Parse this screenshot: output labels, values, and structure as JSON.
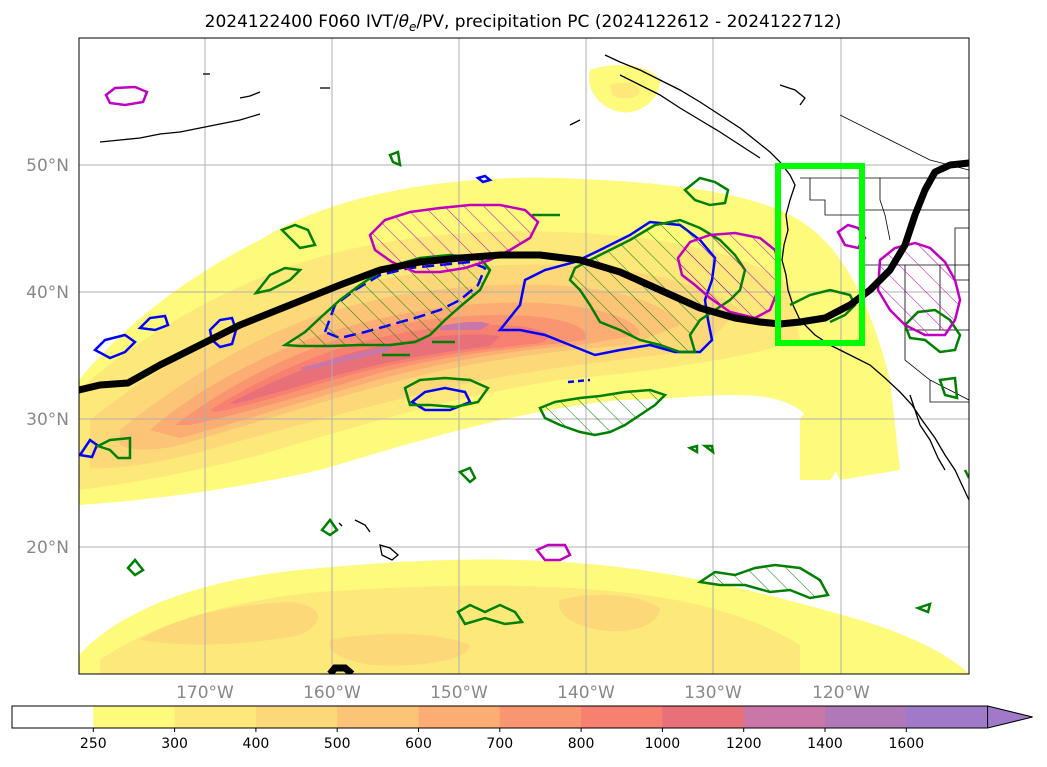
{
  "title": {
    "text_main": "2024122400 F060 IVT/",
    "theta": "θ",
    "theta_sub": "e",
    "text_rest": "/PV, precipitation PC (2024122612 - 2024122712)"
  },
  "axes": {
    "lat_labels": [
      "50°N",
      "40°N",
      "30°N",
      "20°N"
    ],
    "lon_labels": [
      "170°W",
      "160°W",
      "150°W",
      "140°W",
      "130°W",
      "120°W"
    ]
  },
  "colorbar": {
    "ticks": [
      "250",
      "300",
      "400",
      "500",
      "600",
      "700",
      "800",
      "1000",
      "1200",
      "1400",
      "1600"
    ],
    "colors": [
      "#ffffff",
      "#fefa7c",
      "#fde87a",
      "#fdd878",
      "#fcc476",
      "#fbad74",
      "#fa9572",
      "#f88070",
      "#e87078",
      "#c877a8",
      "#b078b8",
      "#a07ac8"
    ],
    "extend": "max"
  },
  "legend_colors": {
    "ivt_fill": "#fde87a",
    "pv_positive": "#0000ff",
    "precip_contour": "#008000",
    "theta_contour": "#c000c0",
    "jet_axis": "#000000",
    "target_box": "#00ff00"
  }
}
